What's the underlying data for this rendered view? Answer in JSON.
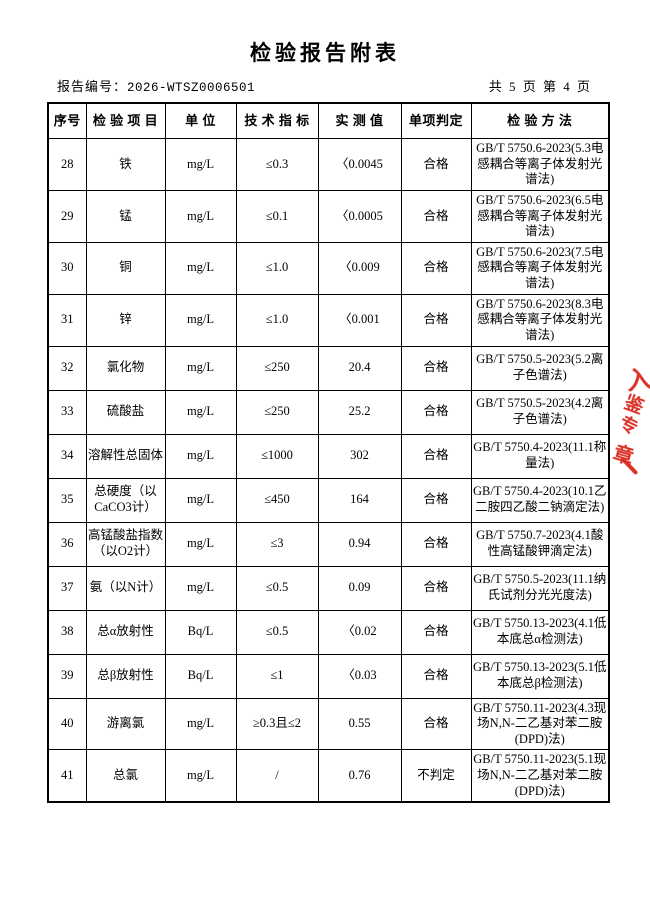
{
  "page": {
    "title": "检验报告附表",
    "report_no_label": "报告编号：",
    "report_no": "2026-WTSZ0006501",
    "page_info": "共 5 页  第 4 页"
  },
  "table": {
    "headers": [
      "序号",
      "检 验 项 目",
      "单 位",
      "技 术 指 标",
      "实 测 值",
      "单项判定",
      "检 验 方 法"
    ],
    "rows": [
      {
        "no": "28",
        "item": "铁",
        "unit": "mg/L",
        "limit": "≤0.3",
        "value": "〈0.0045",
        "judge": "合格",
        "method": "GB/T 5750.6-2023(5.3电感耦合等离子体发射光谱法)"
      },
      {
        "no": "29",
        "item": "锰",
        "unit": "mg/L",
        "limit": "≤0.1",
        "value": "〈0.0005",
        "judge": "合格",
        "method": "GB/T 5750.6-2023(6.5电感耦合等离子体发射光谱法)"
      },
      {
        "no": "30",
        "item": "铜",
        "unit": "mg/L",
        "limit": "≤1.0",
        "value": "〈0.009",
        "judge": "合格",
        "method": "GB/T 5750.6-2023(7.5电感耦合等离子体发射光谱法)"
      },
      {
        "no": "31",
        "item": "锌",
        "unit": "mg/L",
        "limit": "≤1.0",
        "value": "〈0.001",
        "judge": "合格",
        "method": "GB/T 5750.6-2023(8.3电感耦合等离子体发射光谱法)"
      },
      {
        "no": "32",
        "item": "氯化物",
        "unit": "mg/L",
        "limit": "≤250",
        "value": "20.4",
        "judge": "合格",
        "method": "GB/T 5750.5-2023(5.2离子色谱法)"
      },
      {
        "no": "33",
        "item": "硫酸盐",
        "unit": "mg/L",
        "limit": "≤250",
        "value": "25.2",
        "judge": "合格",
        "method": "GB/T 5750.5-2023(4.2离子色谱法)"
      },
      {
        "no": "34",
        "item": "溶解性总固体",
        "unit": "mg/L",
        "limit": "≤1000",
        "value": "302",
        "judge": "合格",
        "method": "GB/T 5750.4-2023(11.1称量法)"
      },
      {
        "no": "35",
        "item": "总硬度（以CaCO3计）",
        "unit": "mg/L",
        "limit": "≤450",
        "value": "164",
        "judge": "合格",
        "method": "GB/T 5750.4-2023(10.1乙二胺四乙酸二钠滴定法)"
      },
      {
        "no": "36",
        "item": "高锰酸盐指数（以O2计）",
        "unit": "mg/L",
        "limit": "≤3",
        "value": "0.94",
        "judge": "合格",
        "method": "GB/T 5750.7-2023(4.1酸性高锰酸钾滴定法)"
      },
      {
        "no": "37",
        "item": "氨（以N计）",
        "unit": "mg/L",
        "limit": "≤0.5",
        "value": "0.09",
        "judge": "合格",
        "method": "GB/T 5750.5-2023(11.1纳氏试剂分光光度法)"
      },
      {
        "no": "38",
        "item": "总α放射性",
        "unit": "Bq/L",
        "limit": "≤0.5",
        "value": "〈0.02",
        "judge": "合格",
        "method": "GB/T 5750.13-2023(4.1低本底总α检测法)"
      },
      {
        "no": "39",
        "item": "总β放射性",
        "unit": "Bq/L",
        "limit": "≤1",
        "value": "〈0.03",
        "judge": "合格",
        "method": "GB/T 5750.13-2023(5.1低本底总β检测法)"
      },
      {
        "no": "40",
        "item": "游离氯",
        "unit": "mg/L",
        "limit": "≥0.3且≤2",
        "value": "0.55",
        "judge": "合格",
        "method": "GB/T 5750.11-2023(4.3现场N,N-二乙基对苯二胺(DPD)法)"
      },
      {
        "no": "41",
        "item": "总氯",
        "unit": "mg/L",
        "limit": "/",
        "value": "0.76",
        "judge": "不判定",
        "method": "GB/T 5750.11-2023(5.1现场N,N-二乙基对苯二胺(DPD)法)"
      }
    ]
  },
  "stamp": {
    "color": "#d9281c",
    "glyphs": [
      "入",
      "鉴",
      "专",
      "章"
    ]
  }
}
